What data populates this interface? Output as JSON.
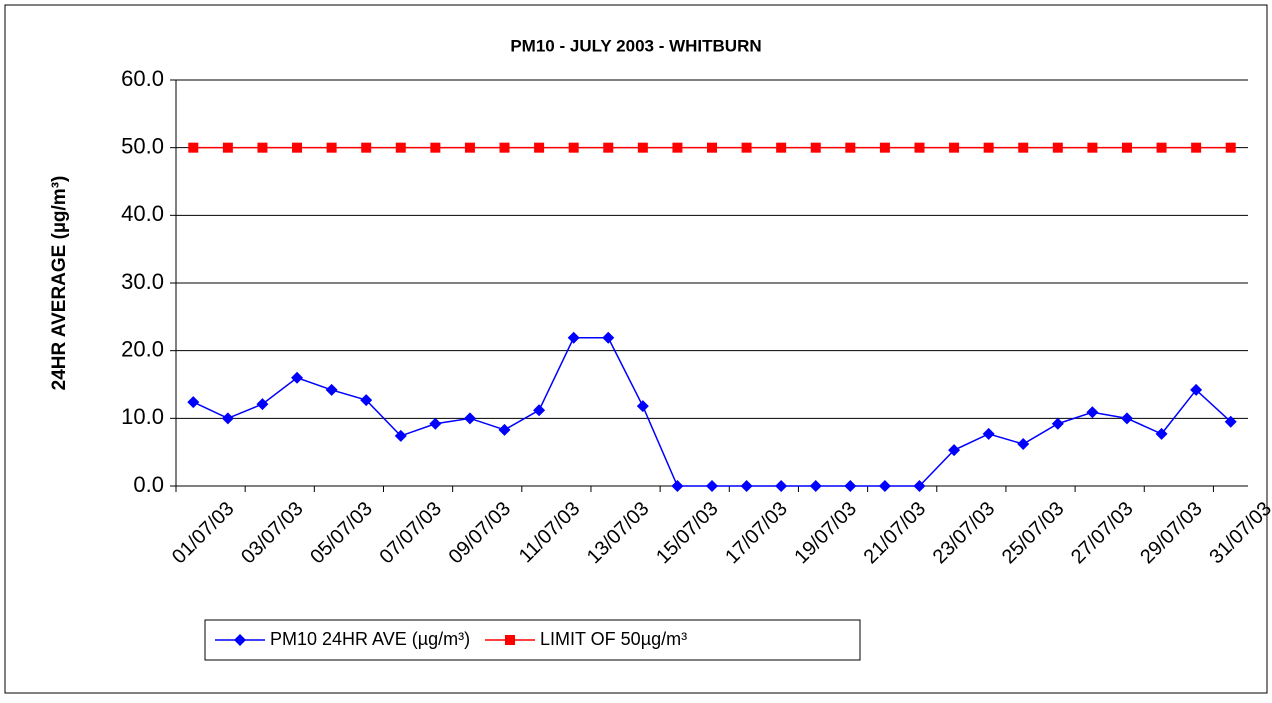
{
  "chart_data": {
    "type": "line",
    "title": "PM10 - JULY 2003 - WHITBURN",
    "y_label": "24HR AVERAGE (µg/m³)",
    "categories": [
      "01/07/03",
      null,
      "03/07/03",
      null,
      "05/07/03",
      null,
      "07/07/03",
      null,
      "09/07/03",
      null,
      "11/07/03",
      null,
      "13/07/03",
      null,
      "15/07/03",
      null,
      "17/07/03",
      null,
      "19/07/03",
      null,
      "21/07/03",
      null,
      "23/07/03",
      null,
      "25/07/03",
      null,
      "27/07/03",
      null,
      "29/07/03",
      null,
      "31/07/03"
    ],
    "series": [
      {
        "name": "PM10 24HR AVE (µg/m³)",
        "color": "#0000ff",
        "marker": "diamond",
        "values": [
          12.4,
          10.0,
          12.1,
          16.0,
          14.2,
          12.7,
          7.4,
          9.2,
          10.0,
          8.3,
          11.2,
          21.9,
          21.9,
          11.8,
          0,
          0,
          0,
          0,
          0,
          0,
          0,
          0,
          5.3,
          7.7,
          6.2,
          9.2,
          10.9,
          10.0,
          7.7,
          14.2,
          9.5
        ]
      },
      {
        "name": "LIMIT OF 50µg/m³",
        "color": "#ff0000",
        "marker": "square",
        "values": [
          50,
          50,
          50,
          50,
          50,
          50,
          50,
          50,
          50,
          50,
          50,
          50,
          50,
          50,
          50,
          50,
          50,
          50,
          50,
          50,
          50,
          50,
          50,
          50,
          50,
          50,
          50,
          50,
          50,
          50,
          50
        ]
      }
    ],
    "ylim": [
      0,
      60
    ],
    "yticks": [
      {
        "value": 0,
        "label": "0.0"
      },
      {
        "value": 10,
        "label": "10.0"
      },
      {
        "value": 20,
        "label": "20.0"
      },
      {
        "value": 30,
        "label": "30.0"
      },
      {
        "value": 40,
        "label": "40.0"
      },
      {
        "value": 50,
        "label": "50.0"
      },
      {
        "value": 60,
        "label": "60.0"
      }
    ],
    "grid": true,
    "legend": "bottom"
  }
}
